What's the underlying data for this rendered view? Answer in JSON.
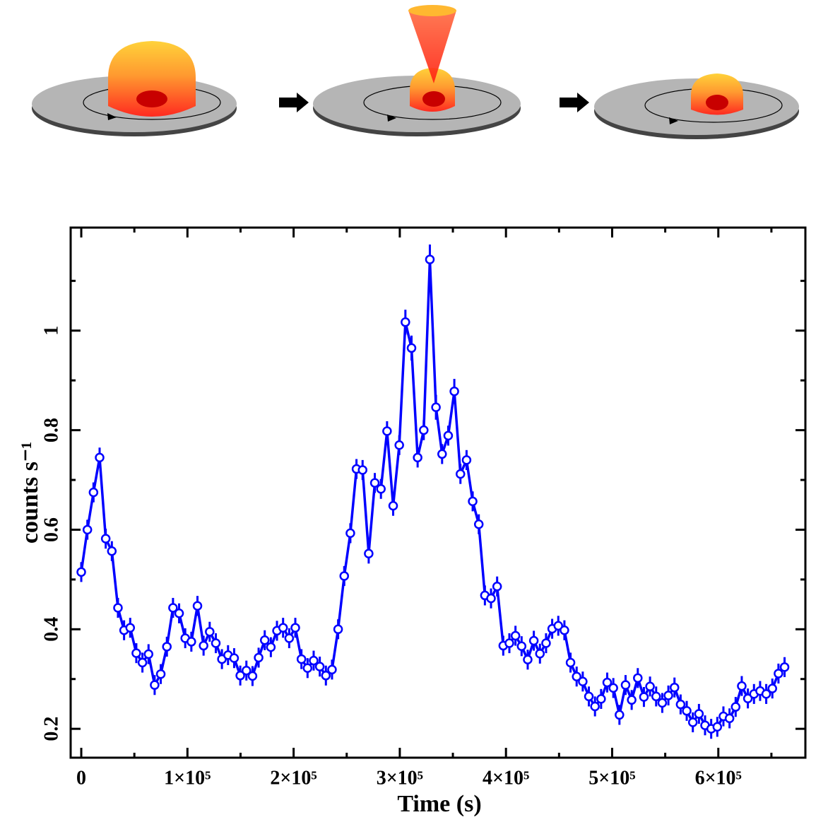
{
  "chart_data": {
    "type": "line",
    "xlabel": "Time (s)",
    "ylabel": "counts s⁻¹",
    "x": [
      0,
      5760,
      11520,
      17280,
      23040,
      28800,
      34560,
      40320,
      46080,
      51840,
      57600,
      63360,
      69120,
      74880,
      80640,
      86400,
      92160,
      97920,
      103680,
      109440,
      115200,
      120960,
      126720,
      132480,
      138240,
      144000,
      149760,
      155520,
      161280,
      167040,
      172800,
      178560,
      184320,
      190080,
      195840,
      201600,
      207360,
      213120,
      218880,
      224640,
      230400,
      236160,
      241920,
      247680,
      253440,
      259200,
      264960,
      270720,
      276480,
      282240,
      288000,
      293760,
      299520,
      305280,
      311040,
      316800,
      322560,
      328320,
      334080,
      339840,
      345600,
      351360,
      357120,
      362880,
      368640,
      374400,
      380160,
      385920,
      391680,
      397440,
      403200,
      408960,
      414720,
      420480,
      426240,
      432000,
      437760,
      443520,
      449280,
      455040,
      460800,
      466560,
      472320,
      478080,
      483840,
      489600,
      495360,
      501120,
      506880,
      512640,
      518400,
      524160,
      529920,
      535680,
      541440,
      547200,
      552960,
      558720,
      564480,
      570240,
      576000,
      581760,
      587520,
      593280,
      599040,
      604800,
      610560,
      616320,
      622080,
      627840,
      633600,
      639360,
      645120,
      650880,
      656640,
      662400
    ],
    "series": [
      {
        "color": "#0000ff",
        "values": [
          0.515,
          0.6,
          0.675,
          0.745,
          0.582,
          0.557,
          0.443,
          0.398,
          0.403,
          0.352,
          0.333,
          0.35,
          0.288,
          0.31,
          0.365,
          0.443,
          0.432,
          0.382,
          0.375,
          0.447,
          0.367,
          0.395,
          0.372,
          0.34,
          0.348,
          0.342,
          0.307,
          0.317,
          0.306,
          0.343,
          0.378,
          0.364,
          0.397,
          0.403,
          0.382,
          0.403,
          0.34,
          0.322,
          0.337,
          0.325,
          0.307,
          0.319,
          0.4,
          0.507,
          0.593,
          0.722,
          0.72,
          0.552,
          0.694,
          0.682,
          0.798,
          0.648,
          0.77,
          1.017,
          0.965,
          0.745,
          0.8,
          1.143,
          0.846,
          0.752,
          0.789,
          0.878,
          0.712,
          0.74,
          0.657,
          0.611,
          0.468,
          0.462,
          0.486,
          0.367,
          0.372,
          0.387,
          0.366,
          0.339,
          0.377,
          0.351,
          0.372,
          0.401,
          0.407,
          0.398,
          0.333,
          0.305,
          0.295,
          0.265,
          0.245,
          0.26,
          0.293,
          0.282,
          0.228,
          0.288,
          0.258,
          0.302,
          0.264,
          0.285,
          0.265,
          0.252,
          0.267,
          0.283,
          0.249,
          0.236,
          0.213,
          0.23,
          0.207,
          0.2,
          0.204,
          0.225,
          0.221,
          0.244,
          0.286,
          0.261,
          0.27,
          0.276,
          0.27,
          0.281,
          0.311,
          0.324
        ],
        "errors": [
          0.02,
          0.02,
          0.02,
          0.02,
          0.02,
          0.02,
          0.02,
          0.02,
          0.02,
          0.02,
          0.02,
          0.02,
          0.02,
          0.02,
          0.02,
          0.02,
          0.02,
          0.02,
          0.02,
          0.02,
          0.02,
          0.02,
          0.02,
          0.02,
          0.02,
          0.02,
          0.02,
          0.02,
          0.02,
          0.02,
          0.02,
          0.02,
          0.02,
          0.02,
          0.02,
          0.02,
          0.02,
          0.02,
          0.02,
          0.02,
          0.02,
          0.02,
          0.02,
          0.02,
          0.02,
          0.02,
          0.02,
          0.02,
          0.02,
          0.02,
          0.02,
          0.02,
          0.02,
          0.025,
          0.025,
          0.02,
          0.02,
          0.03,
          0.025,
          0.02,
          0.02,
          0.025,
          0.02,
          0.02,
          0.02,
          0.02,
          0.02,
          0.02,
          0.02,
          0.02,
          0.02,
          0.02,
          0.02,
          0.02,
          0.02,
          0.02,
          0.02,
          0.02,
          0.02,
          0.02,
          0.02,
          0.02,
          0.02,
          0.02,
          0.02,
          0.02,
          0.02,
          0.02,
          0.02,
          0.02,
          0.02,
          0.02,
          0.02,
          0.02,
          0.02,
          0.02,
          0.02,
          0.02,
          0.02,
          0.02,
          0.02,
          0.02,
          0.02,
          0.02,
          0.02,
          0.02,
          0.02,
          0.02,
          0.02,
          0.02,
          0.02,
          0.02,
          0.02,
          0.02,
          0.02,
          0.02
        ]
      }
    ],
    "xlim": [
      -10000,
      682000
    ],
    "ylim": [
      0.142,
      1.207
    ],
    "xticks": [
      0,
      {
        "value": 100000,
        "label": "1×10⁵"
      },
      {
        "value": 200000,
        "label": "2×10⁵"
      },
      {
        "value": 300000,
        "label": "3×10⁵"
      },
      {
        "value": 400000,
        "label": "4×10⁵"
      },
      {
        "value": 500000,
        "label": "5×10⁵"
      },
      {
        "value": 600000,
        "label": "6×10⁵"
      }
    ],
    "xminorticks": [
      50000,
      150000,
      250000,
      350000,
      450000,
      550000,
      650000
    ],
    "yticks": [
      0.2,
      0.4,
      0.6,
      0.8,
      1
    ],
    "yminorticks": [
      0.3,
      0.5,
      0.7,
      0.9,
      1.1
    ]
  }
}
